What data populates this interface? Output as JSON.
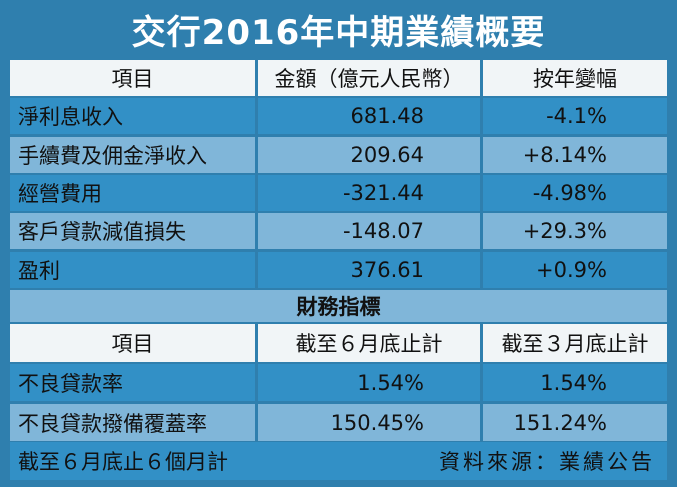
{
  "title": "交行2016年中期業績概要",
  "table1": {
    "header": [
      "項目",
      "金額（億元人民幣）",
      "按年變幅"
    ],
    "rows": [
      [
        "淨利息收入",
        "681.48",
        "-4.1%"
      ],
      [
        "手續費及佣金淨收入",
        "209.64",
        "+8.14%"
      ],
      [
        "經營費用",
        "-321.44",
        "-4.98%"
      ],
      [
        "客戶貸款減值損失",
        "-148.07",
        "+29.3%"
      ],
      [
        "盈利",
        "376.61",
        "+0.9%"
      ]
    ]
  },
  "section_title": "財務指標",
  "table2": {
    "header": [
      "項目",
      "截至６月底止計",
      "截至３月底止計"
    ],
    "rows": [
      [
        "不良貸款率",
        "1.54%",
        "1.54%"
      ],
      [
        "不良貸款撥備覆蓋率",
        "150.45%",
        "151.24%"
      ]
    ]
  },
  "footer": {
    "note": "截至６月底止６個月計",
    "source": "資料來源：業績公告"
  }
}
